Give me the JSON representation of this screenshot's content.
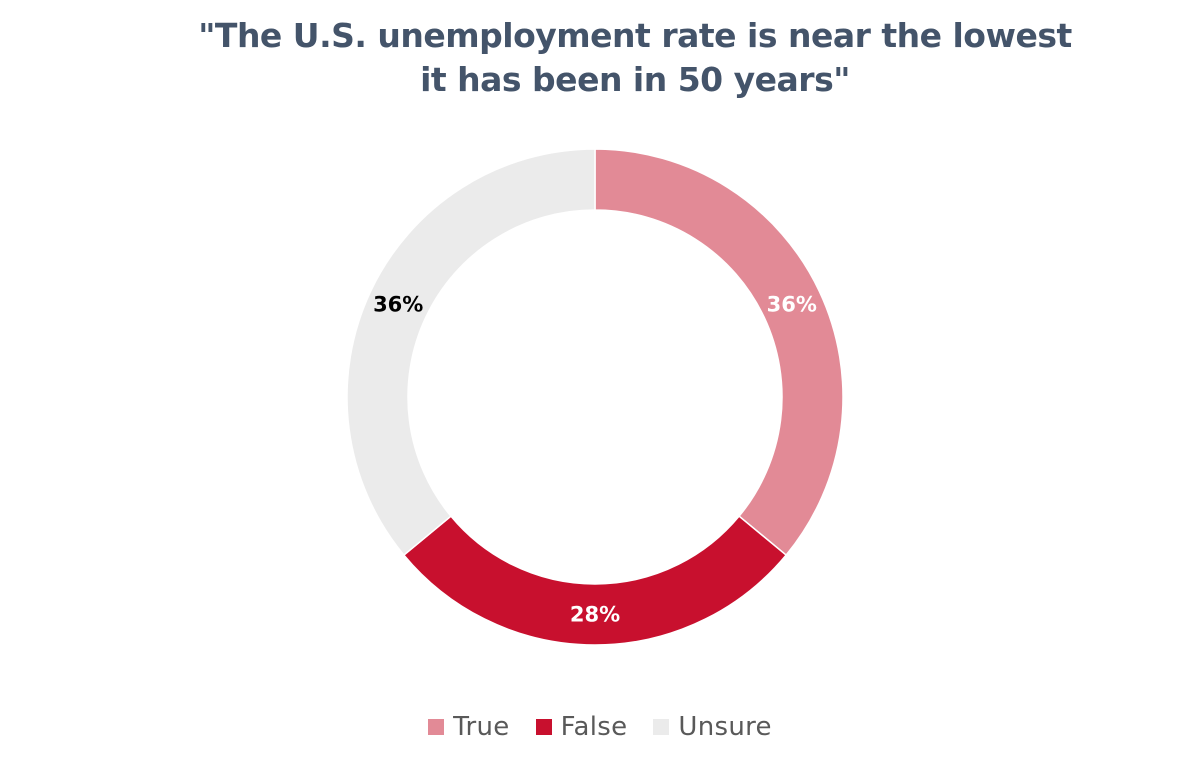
{
  "chart_data": {
    "type": "pie",
    "variant": "donut",
    "title_lines": [
      "\"The U.S. unemployment rate is near the lowest",
      "it has been in 50 years\""
    ],
    "slices": [
      {
        "name": "True",
        "value": 36,
        "label": "36%",
        "color": "#e28a96",
        "label_color": "#ffffff"
      },
      {
        "name": "False",
        "value": 28,
        "label": "28%",
        "color": "#c8102e",
        "label_color": "#ffffff"
      },
      {
        "name": "Unsure",
        "value": 36,
        "label": "36%",
        "color": "#ebebeb",
        "label_color": "#000000"
      }
    ],
    "legend": {
      "placement": "bottom",
      "entries": [
        "True",
        "False",
        "Unsure"
      ]
    }
  }
}
